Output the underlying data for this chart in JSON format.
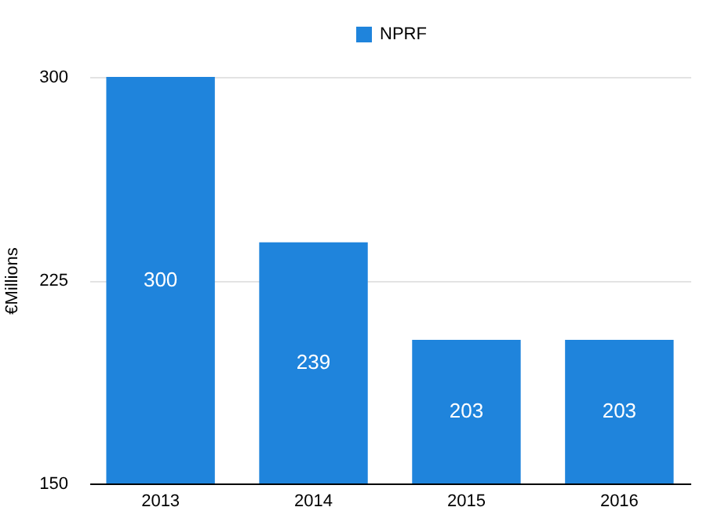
{
  "chart_data": {
    "type": "bar",
    "ylabel": "€Millions",
    "categories": [
      "2013",
      "2014",
      "2015",
      "2016"
    ],
    "series": [
      {
        "name": "NPRF",
        "color": "#1f84dc",
        "values": [
          300,
          239,
          203,
          203
        ]
      }
    ],
    "ylim": [
      150,
      300
    ],
    "yticks": [
      150,
      225,
      300
    ],
    "grid": "y",
    "legend": "top",
    "data_labels": true
  }
}
